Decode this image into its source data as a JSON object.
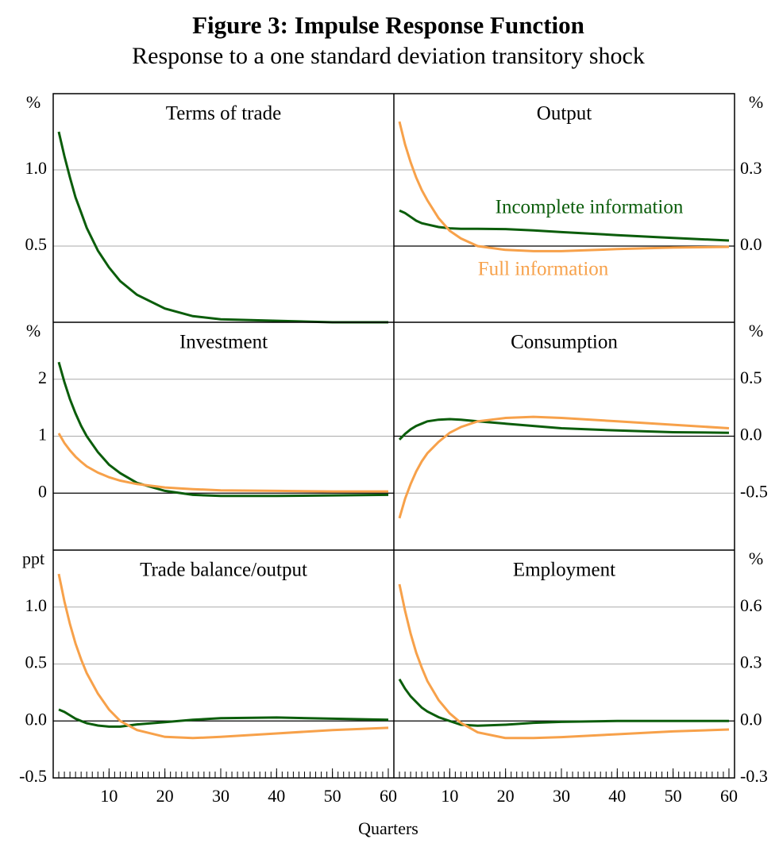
{
  "title": "Figure 3: Impulse Response Function",
  "subtitle": "Response to a one standard deviation transitory shock",
  "x_label": "Quarters",
  "chart_data": [
    {
      "type": "line",
      "title": "Terms of trade",
      "unit": "%",
      "axis_side": "left",
      "xlim": [
        0,
        61
      ],
      "ylim": [
        0,
        1.5
      ],
      "yticks": [
        0.5,
        {
          "value": 1.0,
          "label": "1.0"
        }
      ],
      "x": [
        1,
        2,
        3,
        4,
        5,
        6,
        8,
        10,
        12,
        15,
        20,
        25,
        30,
        40,
        50,
        60
      ],
      "series": [
        {
          "color": "#0b5d0b",
          "values": [
            1.25,
            1.09,
            0.95,
            0.82,
            0.72,
            0.62,
            0.47,
            0.36,
            0.27,
            0.18,
            0.09,
            0.04,
            0.02,
            0.01,
            0.0,
            0.0
          ]
        }
      ]
    },
    {
      "type": "line",
      "title": "Output",
      "unit": "%",
      "axis_side": "right",
      "legend": "inline",
      "xlim": [
        0,
        61
      ],
      "ylim": [
        -0.3,
        0.6
      ],
      "yticks": [
        {
          "value": 0,
          "label": "0.0"
        },
        0.3
      ],
      "x": [
        1,
        2,
        3,
        4,
        5,
        6,
        8,
        10,
        12,
        15,
        20,
        25,
        30,
        40,
        50,
        60
      ],
      "series": [
        {
          "name": "Incomplete information",
          "color": "#0b5d0b",
          "values": [
            0.14,
            0.13,
            0.115,
            0.1,
            0.09,
            0.085,
            0.075,
            0.07,
            0.068,
            0.068,
            0.067,
            0.062,
            0.055,
            0.043,
            0.032,
            0.022
          ]
        },
        {
          "name": "Full information",
          "color": "#f7a14a",
          "values": [
            0.49,
            0.4,
            0.33,
            0.27,
            0.22,
            0.18,
            0.11,
            0.06,
            0.03,
            0.0,
            -0.015,
            -0.02,
            -0.02,
            -0.012,
            -0.006,
            -0.003
          ]
        }
      ]
    },
    {
      "type": "line",
      "title": "Investment",
      "unit": "%",
      "axis_side": "left",
      "xlim": [
        0,
        61
      ],
      "ylim": [
        -1,
        3
      ],
      "yticks": [
        0,
        1,
        2
      ],
      "x": [
        1,
        2,
        3,
        4,
        5,
        6,
        8,
        10,
        12,
        15,
        20,
        25,
        30,
        40,
        50,
        60
      ],
      "series": [
        {
          "color": "#0b5d0b",
          "values": [
            2.3,
            1.95,
            1.65,
            1.4,
            1.18,
            1.0,
            0.72,
            0.5,
            0.35,
            0.18,
            0.04,
            -0.03,
            -0.05,
            -0.05,
            -0.04,
            -0.03
          ]
        },
        {
          "color": "#f7a14a",
          "values": [
            1.05,
            0.88,
            0.75,
            0.64,
            0.55,
            0.47,
            0.36,
            0.28,
            0.22,
            0.16,
            0.1,
            0.07,
            0.05,
            0.04,
            0.03,
            0.03
          ]
        }
      ]
    },
    {
      "type": "line",
      "title": "Consumption",
      "unit": "%",
      "axis_side": "right",
      "xlim": [
        0,
        61
      ],
      "ylim": [
        -1,
        1
      ],
      "yticks": [
        -0.5,
        {
          "value": 0,
          "label": "0.0"
        },
        0.5
      ],
      "x": [
        1,
        2,
        3,
        4,
        5,
        6,
        8,
        10,
        12,
        15,
        20,
        25,
        30,
        40,
        50,
        60
      ],
      "series": [
        {
          "color": "#0b5d0b",
          "values": [
            -0.03,
            0.02,
            0.06,
            0.09,
            0.11,
            0.13,
            0.145,
            0.15,
            0.145,
            0.13,
            0.11,
            0.09,
            0.07,
            0.05,
            0.035,
            0.03
          ]
        },
        {
          "color": "#f7a14a",
          "values": [
            -0.72,
            -0.55,
            -0.42,
            -0.31,
            -0.22,
            -0.15,
            -0.05,
            0.03,
            0.08,
            0.13,
            0.16,
            0.17,
            0.16,
            0.13,
            0.1,
            0.07
          ]
        }
      ]
    },
    {
      "type": "line",
      "title": "Trade balance/output",
      "unit": "ppt",
      "axis_side": "left",
      "xlim": [
        0,
        61
      ],
      "ylim": [
        -0.5,
        1.5
      ],
      "yticks": [
        -0.5,
        {
          "value": 0,
          "label": "0.0"
        },
        0.5,
        {
          "value": 1.0,
          "label": "1.0"
        }
      ],
      "xticks": [
        10,
        20,
        30,
        40,
        50,
        60
      ],
      "minor_ticks": true,
      "x": [
        1,
        2,
        3,
        4,
        5,
        6,
        8,
        10,
        12,
        15,
        20,
        25,
        30,
        40,
        50,
        60
      ],
      "series": [
        {
          "color": "#0b5d0b",
          "values": [
            0.1,
            0.08,
            0.05,
            0.02,
            0.0,
            -0.02,
            -0.04,
            -0.05,
            -0.05,
            -0.03,
            -0.01,
            0.01,
            0.025,
            0.03,
            0.02,
            0.01
          ]
        },
        {
          "color": "#f7a14a",
          "values": [
            1.29,
            1.05,
            0.85,
            0.68,
            0.54,
            0.42,
            0.24,
            0.1,
            0.0,
            -0.08,
            -0.14,
            -0.15,
            -0.14,
            -0.11,
            -0.08,
            -0.06
          ]
        }
      ]
    },
    {
      "type": "line",
      "title": "Employment",
      "unit": "%",
      "axis_side": "right",
      "xlim": [
        0,
        61
      ],
      "ylim": [
        -0.3,
        0.9
      ],
      "yticks": [
        -0.3,
        {
          "value": 0,
          "label": "0.0"
        },
        0.3,
        0.6
      ],
      "xticks": [
        10,
        20,
        30,
        40,
        50,
        60
      ],
      "minor_ticks": true,
      "x": [
        1,
        2,
        3,
        4,
        5,
        6,
        8,
        10,
        12,
        15,
        20,
        25,
        30,
        40,
        50,
        60
      ],
      "series": [
        {
          "color": "#0b5d0b",
          "values": [
            0.22,
            0.17,
            0.13,
            0.1,
            0.07,
            0.05,
            0.02,
            0.0,
            -0.02,
            -0.025,
            -0.02,
            -0.01,
            -0.005,
            0.0,
            0.0,
            0.0
          ]
        },
        {
          "color": "#f7a14a",
          "values": [
            0.72,
            0.58,
            0.46,
            0.36,
            0.28,
            0.21,
            0.11,
            0.04,
            -0.01,
            -0.06,
            -0.09,
            -0.09,
            -0.085,
            -0.07,
            -0.055,
            -0.045
          ]
        }
      ]
    }
  ]
}
